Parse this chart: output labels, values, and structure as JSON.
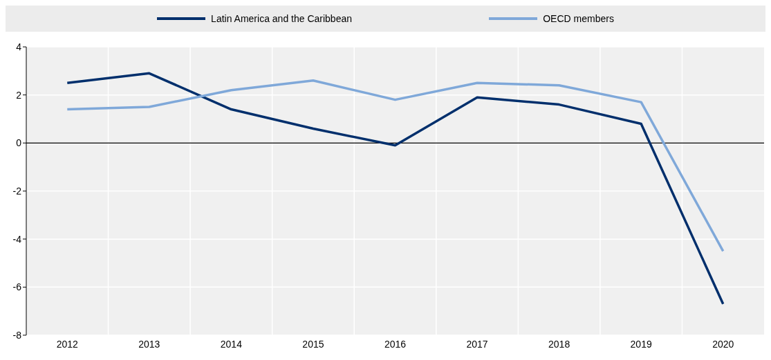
{
  "chart_data": {
    "type": "line",
    "categories": [
      "2012",
      "2013",
      "2014",
      "2015",
      "2016",
      "2017",
      "2018",
      "2019",
      "2020"
    ],
    "series": [
      {
        "name": "Latin America and the Caribbean",
        "color": "#002f6c",
        "values": [
          2.5,
          2.9,
          1.4,
          0.6,
          -0.1,
          1.9,
          1.6,
          0.8,
          -6.7
        ]
      },
      {
        "name": "OECD members",
        "color": "#7fa8d9",
        "values": [
          1.4,
          1.5,
          2.2,
          2.6,
          1.8,
          2.5,
          2.4,
          1.7,
          -4.5
        ]
      }
    ],
    "ylim": [
      -8,
      4
    ],
    "yticks": [
      -8,
      -6,
      -4,
      -2,
      0,
      2,
      4
    ],
    "grid": true,
    "legend": "top",
    "marker": "none",
    "line_style": "solid",
    "ref_lines": [
      {
        "axis": "y",
        "value": 0,
        "color": "#000000"
      }
    ]
  }
}
